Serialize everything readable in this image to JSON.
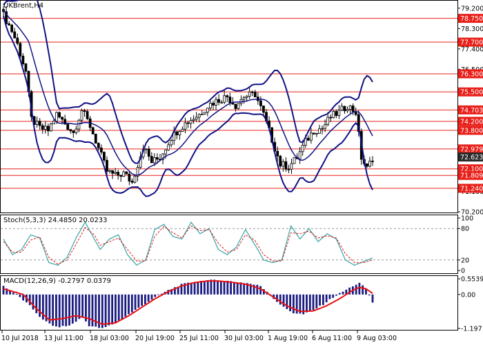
{
  "header": {
    "symbol_label": "UKBrent,H4",
    "stoch_label": "Stoch(5,3,3) 24.4850 20.0233",
    "macd_label": "MACD(12,26,9) -0.2797 0.0379"
  },
  "colors": {
    "level_line": "#e8201a",
    "level_box": "#e8201a",
    "bollinger": "#101085",
    "price_tag": "#2b2b2b",
    "macd_hist": "#1a1a80",
    "signal": "#e81010",
    "stoch_main": "#35a3a3",
    "stoch_signal": "#e01010"
  },
  "price_axis": {
    "black_ticks": [
      "79.200",
      "78.300",
      "77.400",
      "76.500",
      "73.800",
      "72.900",
      "71.100",
      "70.200"
    ]
  },
  "levels": [
    "78.750",
    "77.700",
    "76.300",
    "75.500",
    "74.703",
    "74.200",
    "73.800",
    "72.979",
    "72.100",
    "71.809",
    "71.240"
  ],
  "current_price": "72.623",
  "stoch_axis": {
    "ticks": [
      "100",
      "80",
      "20",
      "0"
    ]
  },
  "macd_axis": {
    "ticks": [
      "0.5539",
      "0.00",
      "-1.197"
    ]
  },
  "time_axis": {
    "labels": [
      "10 Jul 2018",
      "13 Jul 11:00",
      "18 Jul 03:00",
      "20 Jul 19:00",
      "25 Jul 11:00",
      "30 Jul 03:00",
      "1 Aug 19:00",
      "6 Aug 11:00",
      "9 Aug 03:00"
    ]
  },
  "chart_data": {
    "type": "candlestick",
    "symbol": "UKBrent",
    "timeframe": "H4",
    "price_range": [
      70.2,
      79.5
    ],
    "levels": [
      78.75,
      77.7,
      76.3,
      75.5,
      74.703,
      74.2,
      73.8,
      72.979,
      72.1,
      71.809,
      71.24
    ],
    "current_price": 72.623,
    "close_path": [
      [
        0,
        78.9
      ],
      [
        3,
        78.2
      ],
      [
        5,
        77.6
      ],
      [
        8,
        76.4
      ],
      [
        10,
        74.3
      ],
      [
        13,
        73.9
      ],
      [
        16,
        73.8
      ],
      [
        19,
        74.5
      ],
      [
        22,
        74.1
      ],
      [
        25,
        73.7
      ],
      [
        28,
        74.7
      ],
      [
        31,
        74.0
      ],
      [
        34,
        73.0
      ],
      [
        37,
        72.0
      ],
      [
        40,
        71.8
      ],
      [
        43,
        71.9
      ],
      [
        46,
        71.5
      ],
      [
        50,
        73.1
      ],
      [
        53,
        72.4
      ],
      [
        56,
        72.6
      ],
      [
        60,
        73.5
      ],
      [
        63,
        73.9
      ],
      [
        66,
        74.2
      ],
      [
        70,
        74.5
      ],
      [
        73,
        74.9
      ],
      [
        76,
        75.1
      ],
      [
        80,
        75.3
      ],
      [
        83,
        74.9
      ],
      [
        86,
        75.3
      ],
      [
        90,
        75.4
      ],
      [
        93,
        74.5
      ],
      [
        96,
        73.4
      ],
      [
        99,
        72.3
      ],
      [
        102,
        72.2
      ],
      [
        105,
        72.6
      ],
      [
        108,
        73.3
      ],
      [
        111,
        73.8
      ],
      [
        114,
        73.9
      ],
      [
        117,
        74.4
      ],
      [
        120,
        74.6
      ],
      [
        123,
        74.9
      ],
      [
        126,
        74.6
      ],
      [
        128,
        72.6
      ],
      [
        130,
        72.1
      ],
      [
        132,
        72.6
      ]
    ],
    "stochastic": {
      "params": "5,3,3",
      "main": 24.485,
      "signal": 20.0233,
      "range": [
        0,
        100
      ],
      "levels": [
        80,
        20
      ],
      "main_path": [
        [
          0,
          60
        ],
        [
          3,
          30
        ],
        [
          6,
          40
        ],
        [
          9,
          68
        ],
        [
          12,
          62
        ],
        [
          15,
          15
        ],
        [
          18,
          10
        ],
        [
          21,
          25
        ],
        [
          24,
          62
        ],
        [
          27,
          92
        ],
        [
          30,
          60
        ],
        [
          32,
          40
        ],
        [
          35,
          60
        ],
        [
          38,
          68
        ],
        [
          41,
          30
        ],
        [
          44,
          10
        ],
        [
          47,
          20
        ],
        [
          50,
          78
        ],
        [
          53,
          88
        ],
        [
          56,
          65
        ],
        [
          59,
          60
        ],
        [
          62,
          92
        ],
        [
          65,
          70
        ],
        [
          68,
          80
        ],
        [
          71,
          40
        ],
        [
          74,
          30
        ],
        [
          77,
          45
        ],
        [
          80,
          78
        ],
        [
          83,
          50
        ],
        [
          86,
          20
        ],
        [
          89,
          15
        ],
        [
          92,
          20
        ],
        [
          95,
          85
        ],
        [
          98,
          60
        ],
        [
          101,
          80
        ],
        [
          104,
          55
        ],
        [
          107,
          70
        ],
        [
          110,
          60
        ],
        [
          113,
          20
        ],
        [
          116,
          10
        ],
        [
          119,
          17
        ],
        [
          122,
          24
        ]
      ],
      "signal_path": [
        [
          0,
          55
        ],
        [
          3,
          35
        ],
        [
          6,
          35
        ],
        [
          9,
          58
        ],
        [
          12,
          64
        ],
        [
          15,
          25
        ],
        [
          18,
          12
        ],
        [
          21,
          20
        ],
        [
          24,
          50
        ],
        [
          27,
          82
        ],
        [
          30,
          68
        ],
        [
          32,
          48
        ],
        [
          35,
          55
        ],
        [
          38,
          62
        ],
        [
          41,
          40
        ],
        [
          44,
          18
        ],
        [
          47,
          18
        ],
        [
          50,
          65
        ],
        [
          53,
          84
        ],
        [
          56,
          72
        ],
        [
          59,
          62
        ],
        [
          62,
          85
        ],
        [
          65,
          76
        ],
        [
          68,
          78
        ],
        [
          71,
          52
        ],
        [
          74,
          35
        ],
        [
          77,
          40
        ],
        [
          80,
          68
        ],
        [
          83,
          58
        ],
        [
          86,
          30
        ],
        [
          89,
          18
        ],
        [
          92,
          18
        ],
        [
          95,
          72
        ],
        [
          98,
          70
        ],
        [
          101,
          75
        ],
        [
          104,
          62
        ],
        [
          107,
          66
        ],
        [
          110,
          62
        ],
        [
          113,
          32
        ],
        [
          116,
          15
        ],
        [
          119,
          15
        ],
        [
          122,
          20
        ]
      ]
    },
    "macd": {
      "params": "12,26,9",
      "main": -0.2797,
      "signal": 0.0379,
      "range": [
        -1.197,
        0.5539
      ],
      "hist_path": [
        [
          0,
          0.3
        ],
        [
          4,
          0.0
        ],
        [
          8,
          -0.4
        ],
        [
          12,
          -0.9
        ],
        [
          16,
          -1.15
        ],
        [
          20,
          -1.1
        ],
        [
          24,
          -0.8
        ],
        [
          26,
          -1.1
        ],
        [
          30,
          -1.2
        ],
        [
          34,
          -1.0
        ],
        [
          38,
          -0.7
        ],
        [
          42,
          -0.4
        ],
        [
          46,
          -0.1
        ],
        [
          50,
          0.15
        ],
        [
          54,
          0.35
        ],
        [
          58,
          0.45
        ],
        [
          62,
          0.5
        ],
        [
          66,
          0.5
        ],
        [
          70,
          0.45
        ],
        [
          74,
          0.4
        ],
        [
          78,
          0.3
        ],
        [
          80,
          0.1
        ],
        [
          82,
          -0.15
        ],
        [
          85,
          -0.45
        ],
        [
          88,
          -0.65
        ],
        [
          91,
          -0.7
        ],
        [
          94,
          -0.55
        ],
        [
          97,
          -0.35
        ],
        [
          100,
          -0.1
        ],
        [
          103,
          0.1
        ],
        [
          106,
          0.3
        ],
        [
          108,
          0.4
        ],
        [
          110,
          0.2
        ],
        [
          112,
          -0.28
        ]
      ],
      "signal_path": [
        [
          0,
          0.2
        ],
        [
          6,
          0.0
        ],
        [
          10,
          -0.5
        ],
        [
          14,
          -0.9
        ],
        [
          18,
          -0.85
        ],
        [
          22,
          -0.75
        ],
        [
          26,
          -0.85
        ],
        [
          30,
          -1.05
        ],
        [
          34,
          -1.0
        ],
        [
          38,
          -0.75
        ],
        [
          42,
          -0.45
        ],
        [
          46,
          -0.15
        ],
        [
          50,
          0.1
        ],
        [
          54,
          0.3
        ],
        [
          58,
          0.42
        ],
        [
          62,
          0.48
        ],
        [
          66,
          0.47
        ],
        [
          70,
          0.42
        ],
        [
          74,
          0.35
        ],
        [
          78,
          0.2
        ],
        [
          82,
          -0.1
        ],
        [
          86,
          -0.4
        ],
        [
          90,
          -0.6
        ],
        [
          94,
          -0.58
        ],
        [
          98,
          -0.4
        ],
        [
          102,
          -0.15
        ],
        [
          106,
          0.15
        ],
        [
          108,
          0.25
        ],
        [
          110,
          0.2
        ],
        [
          112,
          0.04
        ]
      ]
    }
  }
}
